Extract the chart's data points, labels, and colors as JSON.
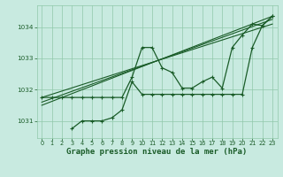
{
  "bg_color": "#c8eae0",
  "grid_color": "#90c8aa",
  "line_color": "#1a5c28",
  "xlabel": "Graphe pression niveau de la mer (hPa)",
  "xlabel_fontsize": 6.5,
  "ytick_labels": [
    "1031",
    "1032",
    "1033",
    "1034"
  ],
  "yticks": [
    1031,
    1032,
    1033,
    1034
  ],
  "xticks": [
    0,
    1,
    2,
    3,
    4,
    5,
    6,
    7,
    8,
    9,
    10,
    11,
    12,
    13,
    14,
    15,
    16,
    17,
    18,
    19,
    20,
    21,
    22,
    23
  ],
  "xlim": [
    -0.5,
    23.5
  ],
  "ylim": [
    1030.45,
    1034.7
  ],
  "series_upper_x": [
    0,
    1,
    2,
    3,
    4,
    5,
    6,
    7,
    8,
    9,
    10,
    11,
    12,
    13,
    14,
    15,
    16,
    17,
    18,
    19,
    20,
    21,
    22,
    23
  ],
  "series_upper_y": [
    1031.75,
    1031.75,
    1031.75,
    1031.75,
    1031.75,
    1031.75,
    1031.75,
    1031.75,
    1031.75,
    1032.4,
    1033.35,
    1033.35,
    1032.7,
    1032.55,
    1032.05,
    1032.05,
    1032.25,
    1032.4,
    1032.05,
    1033.35,
    1033.75,
    1034.1,
    1034.05,
    1034.35
  ],
  "series_lower_x": [
    3,
    4,
    5,
    6,
    7,
    8,
    9,
    10,
    11,
    12,
    13,
    14,
    15,
    16,
    17,
    18,
    19,
    20,
    21,
    22,
    23
  ],
  "series_lower_y": [
    1030.75,
    1031.0,
    1031.0,
    1031.0,
    1031.1,
    1031.35,
    1032.25,
    1031.85,
    1031.85,
    1031.85,
    1031.85,
    1031.85,
    1031.85,
    1031.85,
    1031.85,
    1031.85,
    1031.85,
    1031.85,
    1033.35,
    1034.05,
    1034.35
  ],
  "trend_lines": [
    [
      0,
      23,
      1031.75,
      1034.1
    ],
    [
      0,
      23,
      1031.6,
      1034.25
    ],
    [
      0,
      23,
      1031.5,
      1034.35
    ]
  ]
}
